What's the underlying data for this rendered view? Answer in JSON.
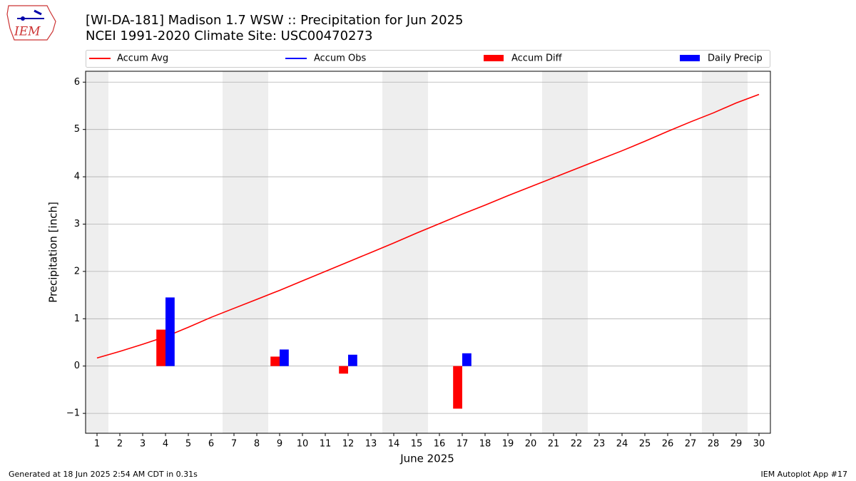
{
  "chart_data": {
    "type": "line",
    "title": "[WI-DA-181] Madison 1.7 WSW :: Precipitation for Jun 2025",
    "subtitle": "NCEI 1991-2020 Climate Site: USC00470273",
    "x_label": "June 2025",
    "y_label": "Precipitation [inch]",
    "logo_text": "IEM",
    "footer_left": "Generated at 18 Jun 2025 2:54 AM CDT in 0.31s",
    "footer_right": "IEM Autoplot App #17",
    "x": [
      1,
      2,
      3,
      4,
      5,
      6,
      7,
      8,
      9,
      10,
      11,
      12,
      13,
      14,
      15,
      16,
      17,
      18,
      19,
      20,
      21,
      22,
      23,
      24,
      25,
      26,
      27,
      28,
      29,
      30
    ],
    "xlim": [
      0.5,
      30.5
    ],
    "xticks": [
      1,
      2,
      3,
      4,
      5,
      6,
      7,
      8,
      9,
      10,
      11,
      12,
      13,
      14,
      15,
      16,
      17,
      18,
      19,
      20,
      21,
      22,
      23,
      24,
      25,
      26,
      27,
      28,
      29,
      30
    ],
    "ylim": [
      -1.42,
      6.23
    ],
    "yticks": [
      {
        "value": -1,
        "label": "−1"
      },
      0,
      1,
      2,
      3,
      4,
      5,
      6
    ],
    "grid": true,
    "shaded_days": [
      1,
      7,
      8,
      14,
      15,
      21,
      22,
      28,
      29
    ],
    "series": [
      {
        "name": "Accum Avg",
        "color": "#ff0000",
        "kind": "line",
        "values": [
          0.17,
          0.31,
          0.46,
          0.62,
          0.82,
          1.03,
          1.22,
          1.41,
          1.6,
          1.8,
          2.0,
          2.2,
          2.4,
          2.6,
          2.81,
          3.01,
          3.21,
          3.4,
          3.6,
          3.79,
          3.98,
          4.17,
          4.36,
          4.55,
          4.75,
          4.96,
          5.16,
          5.35,
          5.56,
          5.74
        ]
      },
      {
        "name": "Accum Obs",
        "color": "#0000ff",
        "kind": "line",
        "values": [
          null,
          null,
          null,
          null,
          null,
          null,
          null,
          null,
          null,
          null,
          null,
          null,
          null,
          null,
          null,
          null,
          null,
          null,
          null,
          null,
          null,
          null,
          null,
          null,
          null,
          null,
          null,
          null,
          null,
          null
        ]
      },
      {
        "name": "Accum Diff",
        "color": "#ff0000",
        "kind": "bar",
        "offset": -0.2,
        "values": [
          null,
          null,
          null,
          0.77,
          null,
          null,
          null,
          null,
          0.2,
          null,
          null,
          -0.16,
          null,
          null,
          null,
          null,
          -0.9,
          null,
          null,
          null,
          null,
          null,
          null,
          null,
          null,
          null,
          null,
          null,
          null,
          null
        ]
      },
      {
        "name": "Daily Precip",
        "color": "#0000ff",
        "kind": "bar",
        "offset": 0.2,
        "values": [
          null,
          null,
          null,
          1.45,
          null,
          null,
          null,
          null,
          0.35,
          null,
          null,
          0.24,
          null,
          null,
          null,
          null,
          0.27,
          null,
          null,
          null,
          null,
          null,
          null,
          null,
          null,
          null,
          null,
          null,
          null,
          null
        ]
      }
    ]
  }
}
